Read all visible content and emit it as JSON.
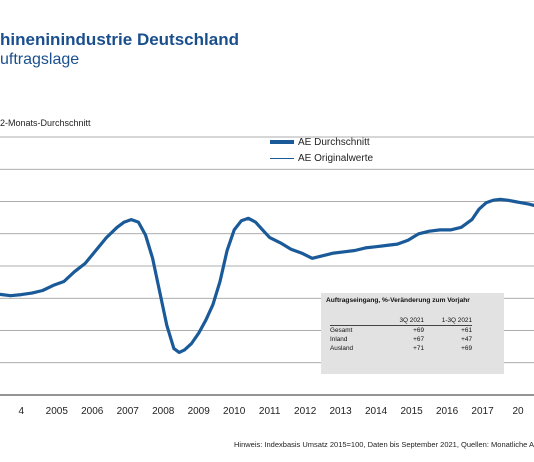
{
  "header": {
    "title": "hineninindustrie Deutschland",
    "subtitle": "uftragslage",
    "ylabel": "2-Monats-Durchschnitt"
  },
  "legend": {
    "avg_label": "AE Durchschnitt",
    "orig_label": "AE Originalwerte"
  },
  "infobox": {
    "title": "Auftragseingang, %-Veränderung zum Vorjahr",
    "col1": "3Q 2021",
    "col2": "1-3Q 2021",
    "rows": [
      {
        "label": "Gesamt",
        "v1": "+69",
        "v2": "+61"
      },
      {
        "label": "Inland",
        "v1": "+67",
        "v2": "+47"
      },
      {
        "label": "Ausland",
        "v1": "+71",
        "v2": "+69"
      }
    ]
  },
  "note": "Hinweis: Indexbasis Umsatz 2015=100, Daten bis September 2021, Quellen: Monatliche A",
  "colors": {
    "line": "#1a5a99",
    "title": "#1a4f8e",
    "box": "#e2e2e2",
    "grid": "#909090"
  },
  "chart_data": {
    "type": "line",
    "x_tick_labels": [
      "4",
      "2005",
      "2006",
      "2007",
      "2008",
      "2009",
      "2010",
      "2011",
      "2012",
      "2013",
      "2014",
      "2015",
      "2016",
      "2017",
      "20"
    ],
    "x_range": [
      2003.9,
      2018.95
    ],
    "y_gridlines": 8,
    "series": [
      {
        "name": "AE Durchschnitt",
        "points": [
          [
            2003.9,
            0.39
          ],
          [
            2004.2,
            0.385
          ],
          [
            2004.5,
            0.389
          ],
          [
            2004.8,
            0.395
          ],
          [
            2005.1,
            0.405
          ],
          [
            2005.4,
            0.425
          ],
          [
            2005.7,
            0.44
          ],
          [
            2006.0,
            0.478
          ],
          [
            2006.3,
            0.51
          ],
          [
            2006.6,
            0.56
          ],
          [
            2006.9,
            0.61
          ],
          [
            2007.2,
            0.65
          ],
          [
            2007.4,
            0.67
          ],
          [
            2007.6,
            0.68
          ],
          [
            2007.8,
            0.67
          ],
          [
            2008.0,
            0.62
          ],
          [
            2008.2,
            0.53
          ],
          [
            2008.4,
            0.4
          ],
          [
            2008.6,
            0.27
          ],
          [
            2008.8,
            0.18
          ],
          [
            2008.95,
            0.165
          ],
          [
            2009.1,
            0.175
          ],
          [
            2009.3,
            0.2
          ],
          [
            2009.5,
            0.24
          ],
          [
            2009.7,
            0.29
          ],
          [
            2009.9,
            0.35
          ],
          [
            2010.1,
            0.44
          ],
          [
            2010.3,
            0.56
          ],
          [
            2010.5,
            0.64
          ],
          [
            2010.7,
            0.675
          ],
          [
            2010.9,
            0.685
          ],
          [
            2011.1,
            0.67
          ],
          [
            2011.3,
            0.64
          ],
          [
            2011.5,
            0.61
          ],
          [
            2011.8,
            0.59
          ],
          [
            2012.1,
            0.565
          ],
          [
            2012.4,
            0.55
          ],
          [
            2012.7,
            0.53
          ],
          [
            2013.0,
            0.54
          ],
          [
            2013.3,
            0.55
          ],
          [
            2013.6,
            0.555
          ],
          [
            2013.9,
            0.56
          ],
          [
            2014.2,
            0.57
          ],
          [
            2014.5,
            0.575
          ],
          [
            2014.8,
            0.58
          ],
          [
            2015.1,
            0.585
          ],
          [
            2015.4,
            0.6
          ],
          [
            2015.7,
            0.625
          ],
          [
            2016.0,
            0.635
          ],
          [
            2016.3,
            0.64
          ],
          [
            2016.6,
            0.64
          ],
          [
            2016.9,
            0.65
          ],
          [
            2017.2,
            0.68
          ],
          [
            2017.4,
            0.72
          ],
          [
            2017.6,
            0.745
          ],
          [
            2017.8,
            0.755
          ],
          [
            2018.0,
            0.758
          ],
          [
            2018.2,
            0.755
          ],
          [
            2018.4,
            0.75
          ],
          [
            2018.6,
            0.745
          ],
          [
            2018.8,
            0.74
          ],
          [
            2018.95,
            0.735
          ]
        ]
      },
      {
        "name": "AE Originalwerte",
        "points": []
      }
    ]
  }
}
